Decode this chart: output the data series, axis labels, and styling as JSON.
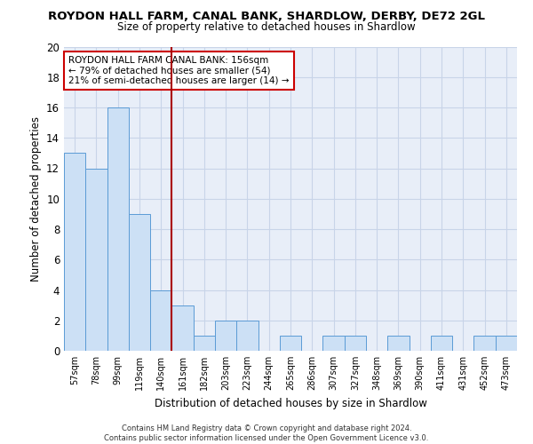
{
  "title": "ROYDON HALL FARM, CANAL BANK, SHARDLOW, DERBY, DE72 2GL",
  "subtitle": "Size of property relative to detached houses in Shardlow",
  "xlabel": "Distribution of detached houses by size in Shardlow",
  "ylabel": "Number of detached properties",
  "categories": [
    "57sqm",
    "78sqm",
    "99sqm",
    "119sqm",
    "140sqm",
    "161sqm",
    "182sqm",
    "203sqm",
    "223sqm",
    "244sqm",
    "265sqm",
    "286sqm",
    "307sqm",
    "327sqm",
    "348sqm",
    "369sqm",
    "390sqm",
    "411sqm",
    "431sqm",
    "452sqm",
    "473sqm"
  ],
  "values": [
    13,
    12,
    16,
    9,
    4,
    3,
    1,
    2,
    2,
    0,
    1,
    0,
    1,
    1,
    0,
    1,
    0,
    1,
    0,
    1,
    1
  ],
  "bar_color": "#cce0f5",
  "bar_edge_color": "#5b9bd5",
  "red_line_index": 5,
  "annotation_line1": "ROYDON HALL FARM CANAL BANK: 156sqm",
  "annotation_line2": "← 79% of detached houses are smaller (54)",
  "annotation_line3": "21% of semi-detached houses are larger (14) →",
  "annotation_box_color": "#ffffff",
  "annotation_box_edge": "#cc0000",
  "ylim": [
    0,
    20
  ],
  "yticks": [
    0,
    2,
    4,
    6,
    8,
    10,
    12,
    14,
    16,
    18,
    20
  ],
  "footer1": "Contains HM Land Registry data © Crown copyright and database right 2024.",
  "footer2": "Contains public sector information licensed under the Open Government Licence v3.0.",
  "background_color": "#ffffff",
  "grid_color": "#c8d4e8",
  "ax_bg_color": "#e8eef8"
}
